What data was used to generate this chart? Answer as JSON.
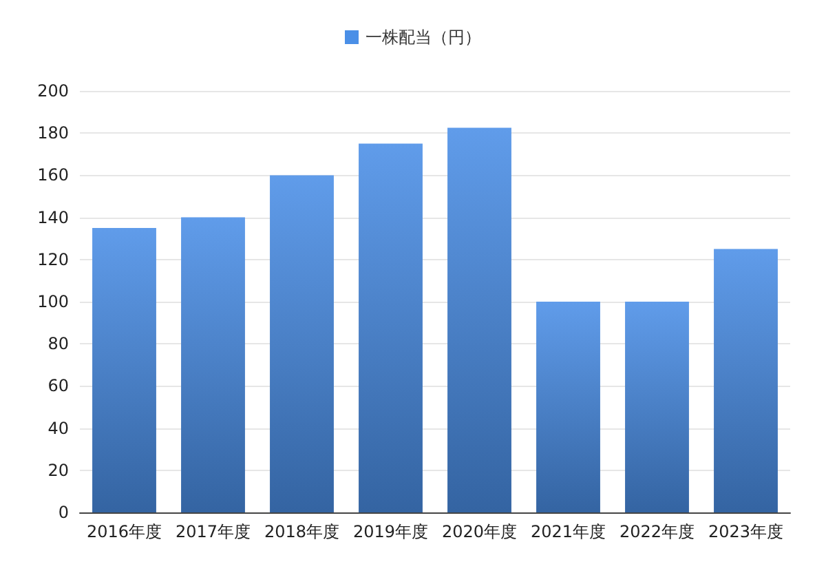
{
  "chart_data": {
    "type": "bar",
    "categories": [
      "2016年度",
      "2017年度",
      "2018年度",
      "2019年度",
      "2020年度",
      "2021年度",
      "2022年度",
      "2023年度"
    ],
    "series": [
      {
        "name": "一株配当（円）",
        "color": "#4a8fe7",
        "values": [
          135,
          140,
          160,
          175,
          182.5,
          100,
          100,
          125
        ]
      }
    ],
    "ylim": [
      0,
      200
    ],
    "yticks": [
      0,
      20,
      40,
      60,
      80,
      100,
      120,
      140,
      160,
      180,
      200
    ],
    "grid": "y",
    "legend": "top"
  }
}
